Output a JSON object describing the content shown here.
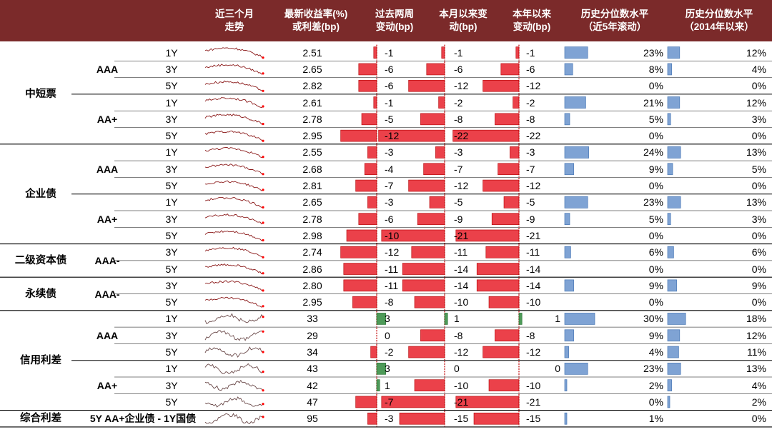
{
  "chart_data": {
    "type": "table",
    "columns": [
      {
        "line1": "近三个月",
        "line2": "走势"
      },
      {
        "line1": "最新收益率(%)",
        "line2": "或利差(bp)"
      },
      {
        "line1": "过去两周",
        "line2": "变动(bp)"
      },
      {
        "line1": "本月以来变",
        "line2": "动(bp)"
      },
      {
        "line1": "本年以来",
        "line2": "变动(bp)"
      },
      {
        "line1": "历史分位数水平",
        "line2": "（近5年滚动）"
      },
      {
        "line1": "历史分位数水平",
        "line2": "（2014年以来）"
      }
    ],
    "categories": [
      {
        "name": "中短票",
        "groups": [
          {
            "grade": "AAA",
            "rows": [
              {
                "term": "1Y",
                "latest": "2.51",
                "chg_2w": -1,
                "chg_mtd": -1,
                "chg_ytd": -1,
                "pct_5y": 23,
                "pct_2014": 12
              },
              {
                "term": "3Y",
                "latest": "2.65",
                "chg_2w": -6,
                "chg_mtd": -6,
                "chg_ytd": -6,
                "pct_5y": 8,
                "pct_2014": 4
              },
              {
                "term": "5Y",
                "latest": "2.82",
                "chg_2w": -6,
                "chg_mtd": -12,
                "chg_ytd": -12,
                "pct_5y": 0,
                "pct_2014": 0
              }
            ]
          },
          {
            "grade": "AA+",
            "rows": [
              {
                "term": "1Y",
                "latest": "2.61",
                "chg_2w": -1,
                "chg_mtd": -2,
                "chg_ytd": -2,
                "pct_5y": 21,
                "pct_2014": 12
              },
              {
                "term": "3Y",
                "latest": "2.78",
                "chg_2w": -5,
                "chg_mtd": -8,
                "chg_ytd": -8,
                "pct_5y": 5,
                "pct_2014": 3
              },
              {
                "term": "5Y",
                "latest": "2.95",
                "chg_2w": -12,
                "chg_mtd": -22,
                "chg_ytd": -22,
                "pct_5y": 0,
                "pct_2014": 0
              }
            ]
          }
        ]
      },
      {
        "name": "企业债",
        "groups": [
          {
            "grade": "AAA",
            "rows": [
              {
                "term": "1Y",
                "latest": "2.55",
                "chg_2w": -3,
                "chg_mtd": -3,
                "chg_ytd": -3,
                "pct_5y": 24,
                "pct_2014": 13
              },
              {
                "term": "3Y",
                "latest": "2.68",
                "chg_2w": -4,
                "chg_mtd": -7,
                "chg_ytd": -7,
                "pct_5y": 9,
                "pct_2014": 5
              },
              {
                "term": "5Y",
                "latest": "2.81",
                "chg_2w": -7,
                "chg_mtd": -12,
                "chg_ytd": -12,
                "pct_5y": 0,
                "pct_2014": 0
              }
            ]
          },
          {
            "grade": "AA+",
            "rows": [
              {
                "term": "1Y",
                "latest": "2.65",
                "chg_2w": -3,
                "chg_mtd": -5,
                "chg_ytd": -5,
                "pct_5y": 23,
                "pct_2014": 13
              },
              {
                "term": "3Y",
                "latest": "2.78",
                "chg_2w": -6,
                "chg_mtd": -9,
                "chg_ytd": -9,
                "pct_5y": 5,
                "pct_2014": 3
              },
              {
                "term": "5Y",
                "latest": "2.98",
                "chg_2w": -10,
                "chg_mtd": -21,
                "chg_ytd": -21,
                "pct_5y": 0,
                "pct_2014": 0
              }
            ]
          }
        ]
      },
      {
        "name": "二级资本债",
        "groups": [
          {
            "grade": "AAA-",
            "rows": [
              {
                "term": "3Y",
                "latest": "2.74",
                "chg_2w": -12,
                "chg_mtd": -11,
                "chg_ytd": -11,
                "pct_5y": 6,
                "pct_2014": 6
              },
              {
                "term": "5Y",
                "latest": "2.86",
                "chg_2w": -11,
                "chg_mtd": -14,
                "chg_ytd": -14,
                "pct_5y": 0,
                "pct_2014": 0
              }
            ]
          }
        ]
      },
      {
        "name": "永续债",
        "groups": [
          {
            "grade": "AAA-",
            "rows": [
              {
                "term": "3Y",
                "latest": "2.80",
                "chg_2w": -11,
                "chg_mtd": -14,
                "chg_ytd": -14,
                "pct_5y": 9,
                "pct_2014": 9
              },
              {
                "term": "5Y",
                "latest": "2.95",
                "chg_2w": -8,
                "chg_mtd": -10,
                "chg_ytd": -10,
                "pct_5y": 0,
                "pct_2014": 0
              }
            ]
          }
        ]
      },
      {
        "name": "信用利差",
        "groups": [
          {
            "grade": "AAA",
            "rows": [
              {
                "term": "1Y",
                "latest": "33",
                "chg_2w": 3,
                "chg_mtd": 1,
                "chg_ytd": 1,
                "pct_5y": 30,
                "pct_2014": 18
              },
              {
                "term": "3Y",
                "latest": "29",
                "chg_2w": 0,
                "chg_mtd": -8,
                "chg_ytd": -8,
                "pct_5y": 9,
                "pct_2014": 12
              },
              {
                "term": "5Y",
                "latest": "34",
                "chg_2w": -2,
                "chg_mtd": -12,
                "chg_ytd": -12,
                "pct_5y": 4,
                "pct_2014": 11
              }
            ]
          },
          {
            "grade": "AA+",
            "rows": [
              {
                "term": "1Y",
                "latest": "43",
                "chg_2w": 3,
                "chg_mtd": 0,
                "chg_ytd": 0,
                "pct_5y": 23,
                "pct_2014": 13
              },
              {
                "term": "3Y",
                "latest": "42",
                "chg_2w": 1,
                "chg_mtd": -10,
                "chg_ytd": -10,
                "pct_5y": 2,
                "pct_2014": 4
              },
              {
                "term": "5Y",
                "latest": "47",
                "chg_2w": -7,
                "chg_mtd": -21,
                "chg_ytd": -21,
                "pct_5y": 0,
                "pct_2014": 2
              }
            ]
          }
        ]
      },
      {
        "name": "综合利差",
        "groups": [
          {
            "grade": "5Y AA+企业债 - 1Y国债",
            "rows": [
              {
                "term": "",
                "latest": "95",
                "chg_2w": -3,
                "chg_mtd": -15,
                "chg_ytd": -15,
                "pct_5y": 1,
                "pct_2014": 0
              }
            ]
          }
        ]
      }
    ],
    "pct_suffix": "%",
    "colors": {
      "header_bg": "#7b2a2a",
      "negative_bar": "#e8202a",
      "positive_bar": "#2f8a3c",
      "pct_bar": "#7fa3d4",
      "sparkline_yield": "#8b1a1a",
      "sparkline_marker": "#ff0000"
    }
  }
}
